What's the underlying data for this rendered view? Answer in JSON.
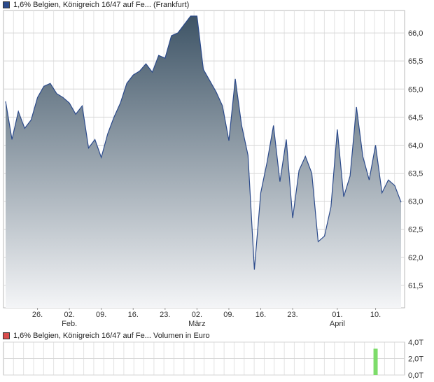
{
  "main_legend": {
    "label": "1,6% Belgien, Königreich 16/47 auf Fe... (Frankfurt)",
    "color": "#2b4a8b"
  },
  "volume_legend": {
    "label": "1,6% Belgien, Königreich 16/47 auf Fe... Volumen in Euro",
    "color": "#d94c4c"
  },
  "chart_data": [
    {
      "type": "area",
      "title": "",
      "xlabel": "",
      "ylabel": "",
      "ylim": [
        61.1,
        66.4
      ],
      "y_ticks": [
        "61,5",
        "62,0",
        "62,5",
        "63,0",
        "63,5",
        "64,0",
        "64,5",
        "65,0",
        "65,5",
        "66,0"
      ],
      "y_tick_values": [
        61.5,
        62.0,
        62.5,
        63.0,
        63.5,
        64.0,
        64.5,
        65.0,
        65.5,
        66.0
      ],
      "x_ticks": [
        {
          "label": "26.",
          "sub": "",
          "index": 5
        },
        {
          "label": "02.",
          "sub": "Feb.",
          "index": 10
        },
        {
          "label": "09.",
          "sub": "",
          "index": 15
        },
        {
          "label": "16.",
          "sub": "",
          "index": 20
        },
        {
          "label": "23.",
          "sub": "",
          "index": 25
        },
        {
          "label": "02.",
          "sub": "März",
          "index": 30
        },
        {
          "label": "09.",
          "sub": "",
          "index": 35
        },
        {
          "label": "16.",
          "sub": "",
          "index": 40
        },
        {
          "label": "23.",
          "sub": "",
          "index": 45
        },
        {
          "label": "01.",
          "sub": "April",
          "index": 52
        },
        {
          "label": "10.",
          "sub": "",
          "index": 58
        }
      ],
      "grid": true,
      "series": [
        {
          "color": "#2b4a8b",
          "values": [
            64.78,
            64.1,
            64.6,
            64.3,
            64.45,
            64.85,
            65.05,
            65.1,
            64.92,
            64.85,
            64.75,
            64.55,
            64.7,
            63.95,
            64.1,
            63.78,
            64.2,
            64.5,
            64.75,
            65.1,
            65.25,
            65.32,
            65.45,
            65.3,
            65.6,
            65.55,
            65.95,
            66.0,
            66.15,
            66.3,
            66.3,
            65.35,
            65.15,
            64.95,
            64.7,
            64.08,
            65.18,
            64.35,
            63.82,
            61.78,
            63.15,
            63.7,
            64.35,
            63.35,
            64.1,
            62.7,
            63.55,
            63.8,
            63.5,
            62.28,
            62.38,
            62.9,
            64.28,
            63.08,
            63.45,
            64.68,
            63.8,
            63.38,
            64.0,
            63.15,
            63.38,
            63.28,
            62.98
          ]
        }
      ]
    },
    {
      "type": "bar",
      "title": "",
      "xlabel": "",
      "ylabel": "",
      "ylim": [
        0,
        4
      ],
      "y_ticks": [
        "0,0T",
        "2,0T",
        "4,0T"
      ],
      "y_tick_values": [
        0,
        2,
        4
      ],
      "grid": true,
      "bar_color": "#7ddc6a",
      "bars": [
        {
          "index": 58,
          "value": 3.2
        }
      ]
    }
  ]
}
